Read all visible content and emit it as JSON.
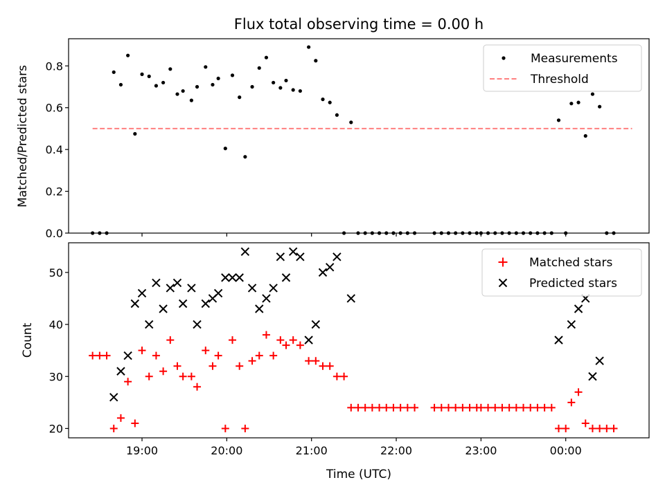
{
  "chart_data": [
    {
      "type": "scatter",
      "title": "Flux total observing time = 0.00 h",
      "xlabel": "",
      "ylabel": "Matched/Predicted stars",
      "ylim": [
        0,
        0.93
      ],
      "xlim": [
        "18:08",
        "00:59"
      ],
      "yticks": [
        0.0,
        0.2,
        0.4,
        0.6,
        0.8
      ],
      "ytick_labels": [
        "0.0",
        "0.2",
        "0.4",
        "0.6",
        "0.8"
      ],
      "legend": {
        "placement": "top-right",
        "entries": [
          "Measurements",
          "Threshold"
        ]
      },
      "threshold": {
        "name": "Threshold",
        "y": 0.5,
        "x_start": "18:25",
        "x_end": "00:47",
        "color": "#ff7f7f",
        "style": "dashed"
      },
      "series": [
        {
          "name": "Measurements",
          "marker": "dot",
          "color": "#000000",
          "points": [
            [
              "18:25",
              0.0
            ],
            [
              "18:30",
              0.0
            ],
            [
              "18:35",
              0.0
            ],
            [
              "18:40",
              0.77
            ],
            [
              "18:45",
              0.71
            ],
            [
              "18:50",
              0.85
            ],
            [
              "18:55",
              0.475
            ],
            [
              "19:00",
              0.76
            ],
            [
              "19:05",
              0.75
            ],
            [
              "19:10",
              0.705
            ],
            [
              "19:15",
              0.72
            ],
            [
              "19:20",
              0.785
            ],
            [
              "19:25",
              0.665
            ],
            [
              "19:29",
              0.68
            ],
            [
              "19:35",
              0.635
            ],
            [
              "19:39",
              0.7
            ],
            [
              "19:45",
              0.795
            ],
            [
              "19:50",
              0.71
            ],
            [
              "19:54",
              0.74
            ],
            [
              "19:59",
              0.405
            ],
            [
              "20:04",
              0.755
            ],
            [
              "20:09",
              0.65
            ],
            [
              "20:13",
              0.365
            ],
            [
              "20:18",
              0.7
            ],
            [
              "20:23",
              0.79
            ],
            [
              "20:28",
              0.84
            ],
            [
              "20:33",
              0.72
            ],
            [
              "20:38",
              0.695
            ],
            [
              "20:42",
              0.73
            ],
            [
              "20:47",
              0.685
            ],
            [
              "20:52",
              0.68
            ],
            [
              "20:58",
              0.89
            ],
            [
              "21:03",
              0.825
            ],
            [
              "21:08",
              0.64
            ],
            [
              "21:13",
              0.625
            ],
            [
              "21:18",
              0.565
            ],
            [
              "21:23",
              0.0
            ],
            [
              "21:28",
              0.53
            ],
            [
              "21:33",
              0.0
            ],
            [
              "21:38",
              0.0
            ],
            [
              "21:43",
              0.0
            ],
            [
              "21:48",
              0.0
            ],
            [
              "21:53",
              0.0
            ],
            [
              "21:58",
              0.0
            ],
            [
              "22:03",
              0.0
            ],
            [
              "22:08",
              0.0
            ],
            [
              "22:13",
              0.0
            ],
            [
              "22:27",
              0.0
            ],
            [
              "22:32",
              0.0
            ],
            [
              "22:37",
              0.0
            ],
            [
              "22:42",
              0.0
            ],
            [
              "22:47",
              0.0
            ],
            [
              "22:52",
              0.0
            ],
            [
              "22:57",
              0.0
            ],
            [
              "23:00",
              0.0
            ],
            [
              "23:05",
              0.0
            ],
            [
              "23:10",
              0.0
            ],
            [
              "23:15",
              0.0
            ],
            [
              "23:20",
              0.0
            ],
            [
              "23:25",
              0.0
            ],
            [
              "23:30",
              0.0
            ],
            [
              "23:35",
              0.0
            ],
            [
              "23:40",
              0.0
            ],
            [
              "23:45",
              0.0
            ],
            [
              "23:50",
              0.0
            ],
            [
              "23:55",
              0.54
            ],
            [
              "00:00",
              0.0
            ],
            [
              "00:04",
              0.62
            ],
            [
              "00:09",
              0.625
            ],
            [
              "00:14",
              0.465
            ],
            [
              "00:19",
              0.665
            ],
            [
              "00:24",
              0.605
            ],
            [
              "00:29",
              0.0
            ],
            [
              "00:34",
              0.0
            ]
          ]
        }
      ]
    },
    {
      "type": "scatter",
      "title": "",
      "xlabel": "Time (UTC)",
      "ylabel": "Count",
      "ylim": [
        18.2,
        55.7
      ],
      "xlim": [
        "18:08",
        "00:59"
      ],
      "yticks": [
        20,
        30,
        40,
        50
      ],
      "ytick_labels": [
        "20",
        "30",
        "40",
        "50"
      ],
      "xticks": [
        "19:00",
        "20:00",
        "21:00",
        "22:00",
        "23:00",
        "00:00"
      ],
      "xtick_labels": [
        "19:00",
        "20:00",
        "21:00",
        "22:00",
        "23:00",
        "00:00"
      ],
      "legend": {
        "placement": "top-right",
        "entries": [
          "Matched stars",
          "Predicted stars"
        ]
      },
      "series": [
        {
          "name": "Matched stars",
          "marker": "plus",
          "color": "#ff0000",
          "points": [
            [
              "18:25",
              34
            ],
            [
              "18:30",
              34
            ],
            [
              "18:35",
              34
            ],
            [
              "18:40",
              20
            ],
            [
              "18:45",
              22
            ],
            [
              "18:50",
              29
            ],
            [
              "18:55",
              21
            ],
            [
              "19:00",
              35
            ],
            [
              "19:05",
              30
            ],
            [
              "19:10",
              34
            ],
            [
              "19:15",
              31
            ],
            [
              "19:20",
              37
            ],
            [
              "19:25",
              32
            ],
            [
              "19:29",
              30
            ],
            [
              "19:35",
              30
            ],
            [
              "19:39",
              28
            ],
            [
              "19:45",
              35
            ],
            [
              "19:50",
              32
            ],
            [
              "19:54",
              34
            ],
            [
              "19:59",
              20
            ],
            [
              "20:04",
              37
            ],
            [
              "20:09",
              32
            ],
            [
              "20:13",
              20
            ],
            [
              "20:18",
              33
            ],
            [
              "20:23",
              34
            ],
            [
              "20:28",
              38
            ],
            [
              "20:33",
              34
            ],
            [
              "20:38",
              37
            ],
            [
              "20:42",
              36
            ],
            [
              "20:47",
              37
            ],
            [
              "20:52",
              36
            ],
            [
              "20:58",
              33
            ],
            [
              "21:03",
              33
            ],
            [
              "21:08",
              32
            ],
            [
              "21:13",
              32
            ],
            [
              "21:18",
              30
            ],
            [
              "21:23",
              30
            ],
            [
              "21:28",
              24
            ],
            [
              "21:33",
              24
            ],
            [
              "21:38",
              24
            ],
            [
              "21:43",
              24
            ],
            [
              "21:48",
              24
            ],
            [
              "21:53",
              24
            ],
            [
              "21:58",
              24
            ],
            [
              "22:03",
              24
            ],
            [
              "22:08",
              24
            ],
            [
              "22:13",
              24
            ],
            [
              "22:27",
              24
            ],
            [
              "22:32",
              24
            ],
            [
              "22:37",
              24
            ],
            [
              "22:42",
              24
            ],
            [
              "22:47",
              24
            ],
            [
              "22:52",
              24
            ],
            [
              "22:57",
              24
            ],
            [
              "23:00",
              24
            ],
            [
              "23:05",
              24
            ],
            [
              "23:10",
              24
            ],
            [
              "23:15",
              24
            ],
            [
              "23:20",
              24
            ],
            [
              "23:25",
              24
            ],
            [
              "23:30",
              24
            ],
            [
              "23:35",
              24
            ],
            [
              "23:40",
              24
            ],
            [
              "23:45",
              24
            ],
            [
              "23:50",
              24
            ],
            [
              "23:55",
              20
            ],
            [
              "00:00",
              20
            ],
            [
              "00:04",
              25
            ],
            [
              "00:09",
              27
            ],
            [
              "00:14",
              21
            ],
            [
              "00:19",
              20
            ],
            [
              "00:24",
              20
            ],
            [
              "00:29",
              20
            ],
            [
              "00:34",
              20
            ]
          ]
        },
        {
          "name": "Predicted stars",
          "marker": "x",
          "color": "#000000",
          "points": [
            [
              "18:40",
              26
            ],
            [
              "18:45",
              31
            ],
            [
              "18:50",
              34
            ],
            [
              "18:55",
              44
            ],
            [
              "19:00",
              46
            ],
            [
              "19:05",
              40
            ],
            [
              "19:10",
              48
            ],
            [
              "19:15",
              43
            ],
            [
              "19:20",
              47
            ],
            [
              "19:25",
              48
            ],
            [
              "19:29",
              44
            ],
            [
              "19:35",
              47
            ],
            [
              "19:39",
              40
            ],
            [
              "19:45",
              44
            ],
            [
              "19:50",
              45
            ],
            [
              "19:54",
              46
            ],
            [
              "19:59",
              49
            ],
            [
              "20:04",
              49
            ],
            [
              "20:09",
              49
            ],
            [
              "20:13",
              54
            ],
            [
              "20:18",
              47
            ],
            [
              "20:23",
              43
            ],
            [
              "20:28",
              45
            ],
            [
              "20:33",
              47
            ],
            [
              "20:38",
              53
            ],
            [
              "20:42",
              49
            ],
            [
              "20:47",
              54
            ],
            [
              "20:52",
              53
            ],
            [
              "20:58",
              37
            ],
            [
              "21:03",
              40
            ],
            [
              "21:08",
              50
            ],
            [
              "21:13",
              51
            ],
            [
              "21:18",
              53
            ],
            [
              "21:28",
              45
            ],
            [
              "23:55",
              37
            ],
            [
              "00:04",
              40
            ],
            [
              "00:09",
              43
            ],
            [
              "00:14",
              45
            ],
            [
              "00:19",
              30
            ],
            [
              "00:24",
              33
            ]
          ]
        }
      ]
    }
  ]
}
